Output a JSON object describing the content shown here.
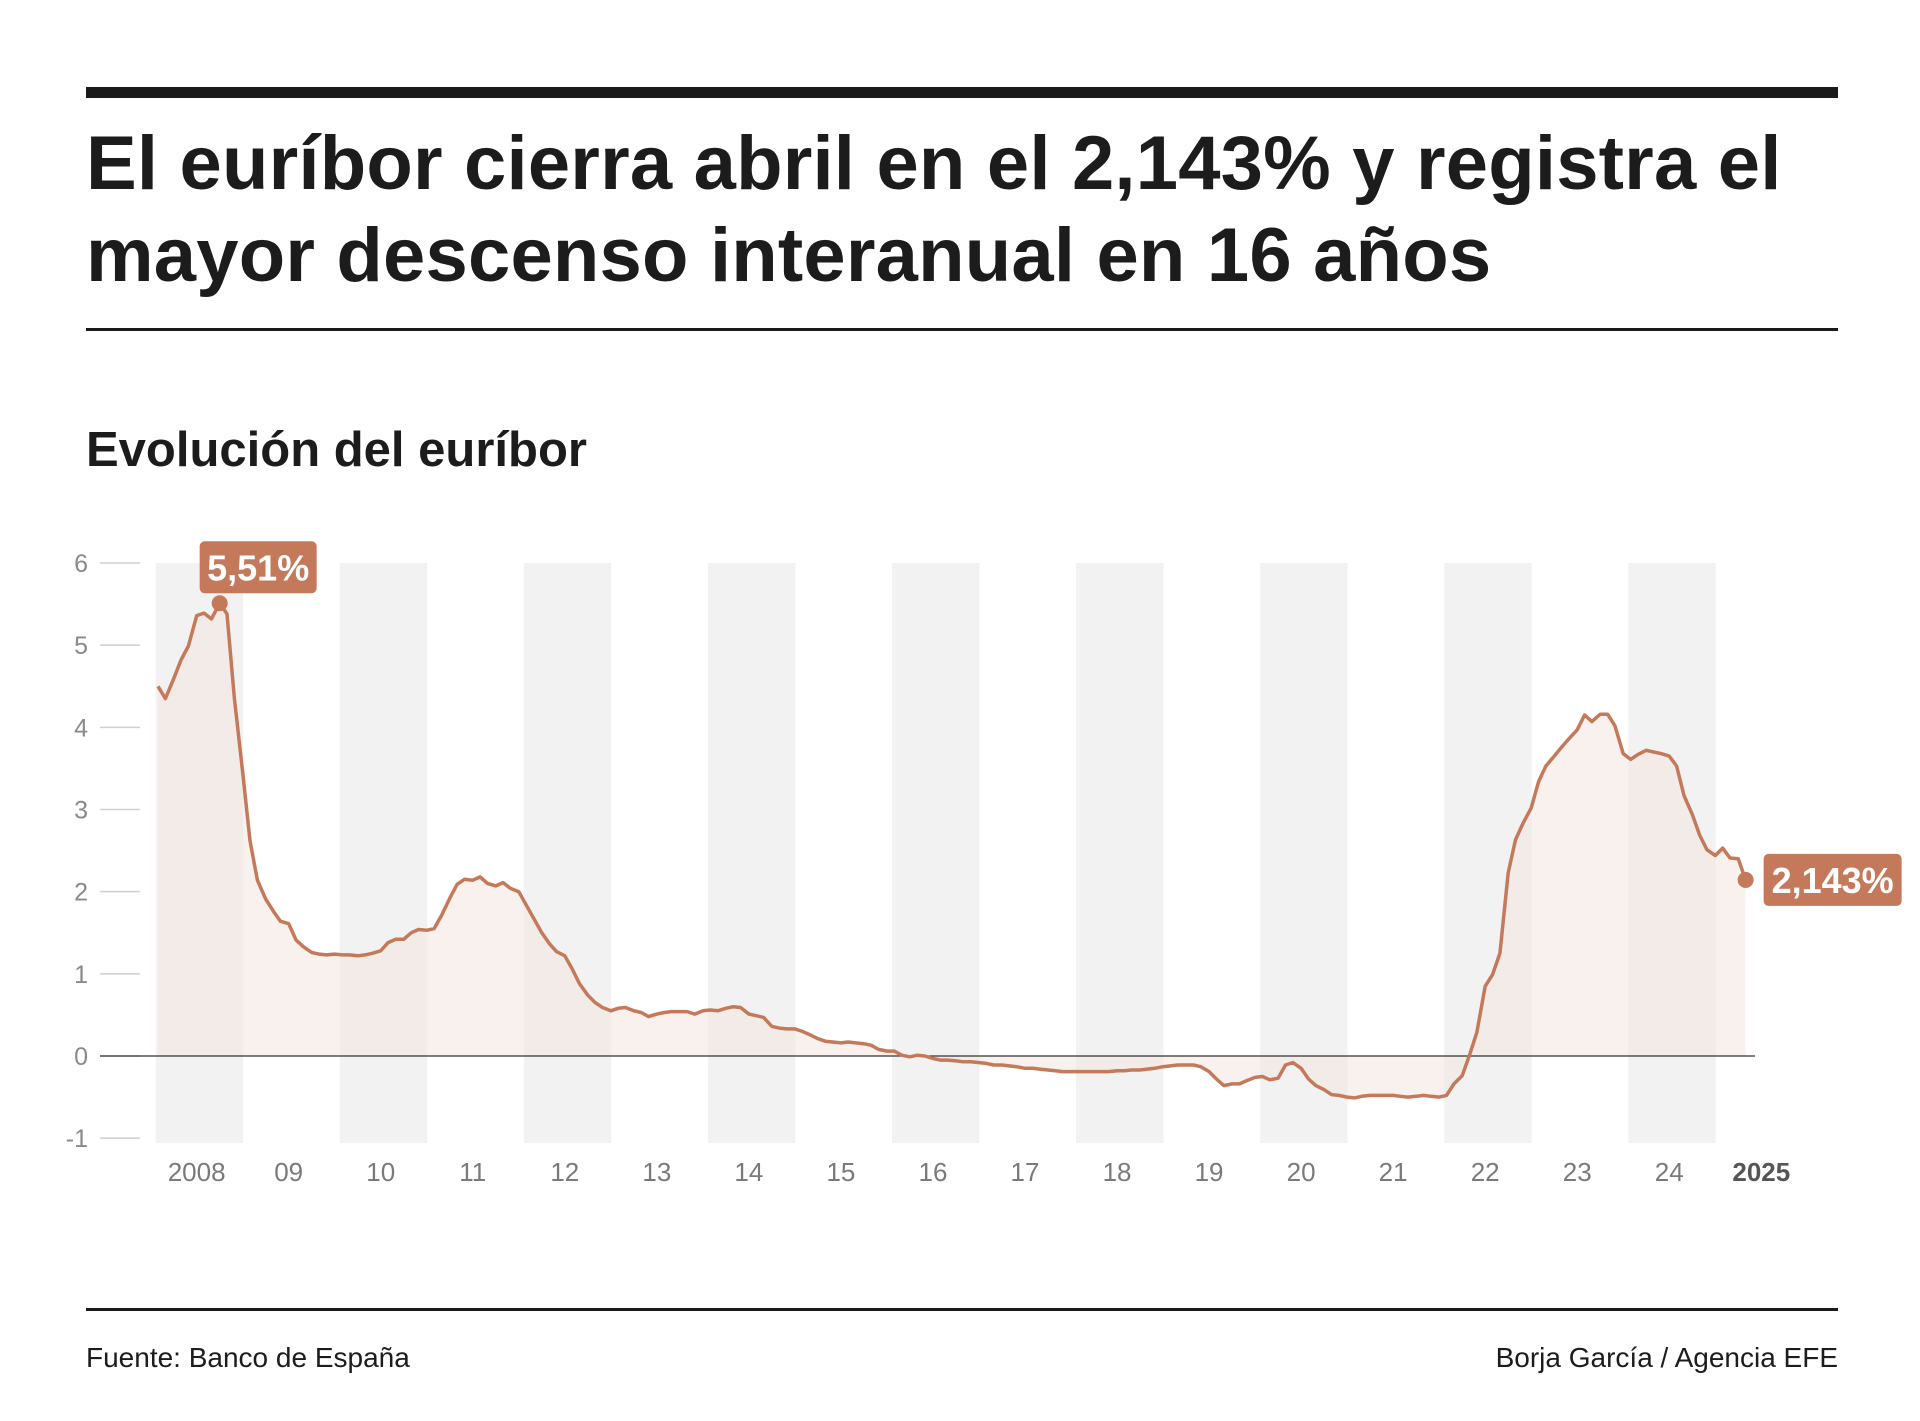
{
  "header": {
    "title": "El euríbor cierra abril en el 2,143% y registra el mayor descenso interanual en 16 años",
    "subtitle": "Evolución del euríbor"
  },
  "footer": {
    "source": "Fuente: Banco de España",
    "credit": "Borja García / Agencia EFE"
  },
  "colors": {
    "line": "#c47a5a",
    "area": "#f4e6df",
    "band": "#f2f2f2",
    "callout": "#c47a5a"
  },
  "chart_data": {
    "type": "line",
    "title": "Evolución del euríbor",
    "xlabel": "",
    "ylabel": "",
    "ylim": [
      -1,
      6
    ],
    "yticks": [
      6,
      5,
      4,
      3,
      2,
      1,
      0,
      -1
    ],
    "xlim": [
      2008.0,
      2025.33
    ],
    "xtick_labels": [
      {
        "x": 2008,
        "label": "2008",
        "bold": false
      },
      {
        "x": 2009,
        "label": "09",
        "bold": false
      },
      {
        "x": 2010,
        "label": "10",
        "bold": false
      },
      {
        "x": 2011,
        "label": "11",
        "bold": false
      },
      {
        "x": 2012,
        "label": "12",
        "bold": false
      },
      {
        "x": 2013,
        "label": "13",
        "bold": false
      },
      {
        "x": 2014,
        "label": "14",
        "bold": false
      },
      {
        "x": 2015,
        "label": "15",
        "bold": false
      },
      {
        "x": 2016,
        "label": "16",
        "bold": false
      },
      {
        "x": 2017,
        "label": "17",
        "bold": false
      },
      {
        "x": 2018,
        "label": "18",
        "bold": false
      },
      {
        "x": 2019,
        "label": "19",
        "bold": false
      },
      {
        "x": 2020,
        "label": "20",
        "bold": false
      },
      {
        "x": 2021,
        "label": "21",
        "bold": false
      },
      {
        "x": 2022,
        "label": "22",
        "bold": false
      },
      {
        "x": 2023,
        "label": "23",
        "bold": false
      },
      {
        "x": 2024,
        "label": "24",
        "bold": false
      },
      {
        "x": 2025,
        "label": "2025",
        "bold": true
      }
    ],
    "shaded_years": [
      2008,
      2010,
      2012,
      2014,
      2016,
      2018,
      2020,
      2022,
      2024
    ],
    "grid": false,
    "series": [
      {
        "points": [
          [
            2008.0,
            4.5
          ],
          [
            2008.08,
            4.35
          ],
          [
            2008.17,
            4.59
          ],
          [
            2008.25,
            4.82
          ],
          [
            2008.33,
            4.99
          ],
          [
            2008.42,
            5.36
          ],
          [
            2008.5,
            5.39
          ],
          [
            2008.58,
            5.32
          ],
          [
            2008.67,
            5.51
          ],
          [
            2008.75,
            5.38
          ],
          [
            2008.83,
            4.35
          ],
          [
            2008.92,
            3.45
          ],
          [
            2009.0,
            2.62
          ],
          [
            2009.08,
            2.14
          ],
          [
            2009.17,
            1.91
          ],
          [
            2009.25,
            1.77
          ],
          [
            2009.33,
            1.64
          ],
          [
            2009.42,
            1.61
          ],
          [
            2009.5,
            1.41
          ],
          [
            2009.58,
            1.33
          ],
          [
            2009.67,
            1.26
          ],
          [
            2009.75,
            1.24
          ],
          [
            2009.83,
            1.23
          ],
          [
            2009.92,
            1.24
          ],
          [
            2010.0,
            1.23
          ],
          [
            2010.08,
            1.23
          ],
          [
            2010.17,
            1.22
          ],
          [
            2010.25,
            1.23
          ],
          [
            2010.33,
            1.25
          ],
          [
            2010.42,
            1.28
          ],
          [
            2010.5,
            1.38
          ],
          [
            2010.58,
            1.42
          ],
          [
            2010.67,
            1.42
          ],
          [
            2010.75,
            1.5
          ],
          [
            2010.83,
            1.54
          ],
          [
            2010.92,
            1.53
          ],
          [
            2011.0,
            1.55
          ],
          [
            2011.08,
            1.71
          ],
          [
            2011.17,
            1.92
          ],
          [
            2011.25,
            2.09
          ],
          [
            2011.33,
            2.15
          ],
          [
            2011.42,
            2.14
          ],
          [
            2011.5,
            2.18
          ],
          [
            2011.58,
            2.1
          ],
          [
            2011.67,
            2.07
          ],
          [
            2011.75,
            2.11
          ],
          [
            2011.83,
            2.04
          ],
          [
            2011.92,
            2.0
          ],
          [
            2012.0,
            1.84
          ],
          [
            2012.08,
            1.68
          ],
          [
            2012.17,
            1.5
          ],
          [
            2012.25,
            1.37
          ],
          [
            2012.33,
            1.27
          ],
          [
            2012.42,
            1.22
          ],
          [
            2012.5,
            1.06
          ],
          [
            2012.58,
            0.88
          ],
          [
            2012.67,
            0.74
          ],
          [
            2012.75,
            0.65
          ],
          [
            2012.83,
            0.59
          ],
          [
            2012.92,
            0.55
          ],
          [
            2013.0,
            0.58
          ],
          [
            2013.08,
            0.59
          ],
          [
            2013.17,
            0.55
          ],
          [
            2013.25,
            0.53
          ],
          [
            2013.33,
            0.48
          ],
          [
            2013.42,
            0.51
          ],
          [
            2013.5,
            0.53
          ],
          [
            2013.58,
            0.54
          ],
          [
            2013.67,
            0.54
          ],
          [
            2013.75,
            0.54
          ],
          [
            2013.83,
            0.51
          ],
          [
            2013.92,
            0.55
          ],
          [
            2014.0,
            0.56
          ],
          [
            2014.08,
            0.55
          ],
          [
            2014.17,
            0.58
          ],
          [
            2014.25,
            0.6
          ],
          [
            2014.33,
            0.59
          ],
          [
            2014.42,
            0.51
          ],
          [
            2014.5,
            0.49
          ],
          [
            2014.58,
            0.47
          ],
          [
            2014.67,
            0.36
          ],
          [
            2014.75,
            0.34
          ],
          [
            2014.83,
            0.33
          ],
          [
            2014.92,
            0.33
          ],
          [
            2015.0,
            0.3
          ],
          [
            2015.08,
            0.26
          ],
          [
            2015.17,
            0.21
          ],
          [
            2015.25,
            0.18
          ],
          [
            2015.33,
            0.17
          ],
          [
            2015.42,
            0.16
          ],
          [
            2015.5,
            0.17
          ],
          [
            2015.58,
            0.16
          ],
          [
            2015.67,
            0.15
          ],
          [
            2015.75,
            0.13
          ],
          [
            2015.83,
            0.08
          ],
          [
            2015.92,
            0.06
          ],
          [
            2016.0,
            0.06
          ],
          [
            2016.08,
            0.01
          ],
          [
            2016.17,
            -0.01
          ],
          [
            2016.25,
            0.01
          ],
          [
            2016.33,
            0.0
          ],
          [
            2016.42,
            -0.03
          ],
          [
            2016.5,
            -0.05
          ],
          [
            2016.58,
            -0.05
          ],
          [
            2016.67,
            -0.06
          ],
          [
            2016.75,
            -0.07
          ],
          [
            2016.83,
            -0.07
          ],
          [
            2016.92,
            -0.08
          ],
          [
            2017.0,
            -0.09
          ],
          [
            2017.08,
            -0.11
          ],
          [
            2017.17,
            -0.11
          ],
          [
            2017.25,
            -0.12
          ],
          [
            2017.33,
            -0.13
          ],
          [
            2017.42,
            -0.15
          ],
          [
            2017.5,
            -0.15
          ],
          [
            2017.58,
            -0.16
          ],
          [
            2017.67,
            -0.17
          ],
          [
            2017.75,
            -0.18
          ],
          [
            2017.83,
            -0.19
          ],
          [
            2017.92,
            -0.19
          ],
          [
            2018.0,
            -0.19
          ],
          [
            2018.08,
            -0.19
          ],
          [
            2018.17,
            -0.19
          ],
          [
            2018.25,
            -0.19
          ],
          [
            2018.33,
            -0.19
          ],
          [
            2018.42,
            -0.18
          ],
          [
            2018.5,
            -0.18
          ],
          [
            2018.58,
            -0.17
          ],
          [
            2018.67,
            -0.17
          ],
          [
            2018.75,
            -0.16
          ],
          [
            2018.83,
            -0.15
          ],
          [
            2018.92,
            -0.13
          ],
          [
            2019.0,
            -0.12
          ],
          [
            2019.08,
            -0.11
          ],
          [
            2019.17,
            -0.11
          ],
          [
            2019.25,
            -0.11
          ],
          [
            2019.33,
            -0.13
          ],
          [
            2019.42,
            -0.19
          ],
          [
            2019.5,
            -0.28
          ],
          [
            2019.58,
            -0.36
          ],
          [
            2019.67,
            -0.34
          ],
          [
            2019.75,
            -0.34
          ],
          [
            2019.83,
            -0.3
          ],
          [
            2019.92,
            -0.26
          ],
          [
            2020.0,
            -0.25
          ],
          [
            2020.08,
            -0.29
          ],
          [
            2020.17,
            -0.27
          ],
          [
            2020.25,
            -0.11
          ],
          [
            2020.33,
            -0.08
          ],
          [
            2020.42,
            -0.15
          ],
          [
            2020.5,
            -0.28
          ],
          [
            2020.58,
            -0.36
          ],
          [
            2020.67,
            -0.41
          ],
          [
            2020.75,
            -0.47
          ],
          [
            2020.83,
            -0.48
          ],
          [
            2020.92,
            -0.5
          ],
          [
            2021.0,
            -0.51
          ],
          [
            2021.08,
            -0.49
          ],
          [
            2021.17,
            -0.48
          ],
          [
            2021.25,
            -0.48
          ],
          [
            2021.33,
            -0.48
          ],
          [
            2021.42,
            -0.48
          ],
          [
            2021.5,
            -0.49
          ],
          [
            2021.58,
            -0.5
          ],
          [
            2021.67,
            -0.49
          ],
          [
            2021.75,
            -0.48
          ],
          [
            2021.83,
            -0.49
          ],
          [
            2021.92,
            -0.5
          ],
          [
            2022.0,
            -0.48
          ],
          [
            2022.08,
            -0.34
          ],
          [
            2022.17,
            -0.24
          ],
          [
            2022.25,
            0.01
          ],
          [
            2022.33,
            0.29
          ],
          [
            2022.42,
            0.85
          ],
          [
            2022.5,
            0.99
          ],
          [
            2022.58,
            1.25
          ],
          [
            2022.67,
            2.23
          ],
          [
            2022.75,
            2.63
          ],
          [
            2022.83,
            2.83
          ],
          [
            2022.92,
            3.02
          ],
          [
            2023.0,
            3.34
          ],
          [
            2023.08,
            3.53
          ],
          [
            2023.17,
            3.65
          ],
          [
            2023.25,
            3.76
          ],
          [
            2023.33,
            3.86
          ],
          [
            2023.42,
            3.97
          ],
          [
            2023.5,
            4.15
          ],
          [
            2023.58,
            4.07
          ],
          [
            2023.67,
            4.16
          ],
          [
            2023.75,
            4.16
          ],
          [
            2023.83,
            4.02
          ],
          [
            2023.92,
            3.68
          ],
          [
            2024.0,
            3.61
          ],
          [
            2024.08,
            3.67
          ],
          [
            2024.17,
            3.72
          ],
          [
            2024.25,
            3.7
          ],
          [
            2024.33,
            3.68
          ],
          [
            2024.42,
            3.65
          ],
          [
            2024.5,
            3.53
          ],
          [
            2024.58,
            3.17
          ],
          [
            2024.67,
            2.94
          ],
          [
            2024.75,
            2.69
          ],
          [
            2024.83,
            2.51
          ],
          [
            2024.92,
            2.44
          ],
          [
            2025.0,
            2.53
          ],
          [
            2025.08,
            2.41
          ],
          [
            2025.17,
            2.4
          ],
          [
            2025.25,
            2.143
          ]
        ]
      }
    ],
    "annotations": [
      {
        "x": 2008.67,
        "y": 5.51,
        "text": "5,51%",
        "position": "above-right"
      },
      {
        "x": 2025.25,
        "y": 2.143,
        "text": "2,143%",
        "position": "right"
      }
    ]
  }
}
